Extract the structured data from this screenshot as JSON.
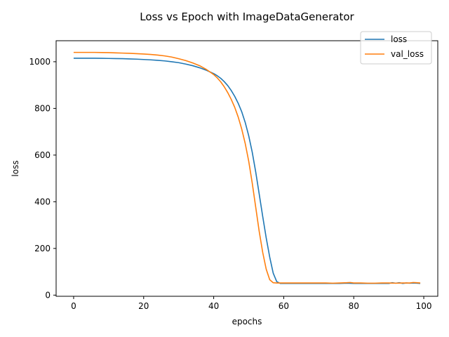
{
  "chart_data": {
    "type": "line",
    "title": "Loss vs Epoch with ImageDataGenerator",
    "xlabel": "epochs",
    "ylabel": "loss",
    "xlim": [
      -5,
      104
    ],
    "ylim": [
      -5,
      1090
    ],
    "xticks": [
      0,
      20,
      40,
      60,
      80,
      100
    ],
    "yticks": [
      0,
      200,
      400,
      600,
      800,
      1000
    ],
    "grid": false,
    "legend_position": "upper right",
    "series": [
      {
        "name": "loss",
        "color": "#1f77b4",
        "x": [
          0,
          2,
          4,
          6,
          8,
          10,
          12,
          14,
          16,
          18,
          20,
          22,
          24,
          26,
          28,
          30,
          32,
          34,
          36,
          38,
          40,
          41,
          42,
          43,
          44,
          45,
          46,
          47,
          48,
          49,
          50,
          51,
          52,
          53,
          54,
          55,
          56,
          57,
          58,
          59,
          60,
          62,
          64,
          66,
          68,
          70,
          72,
          74,
          76,
          78,
          80,
          82,
          84,
          86,
          88,
          90,
          91,
          92,
          93,
          94,
          95,
          96,
          97,
          98,
          99
        ],
        "y": [
          1015,
          1015,
          1015,
          1015,
          1014.5,
          1014,
          1013.5,
          1013,
          1012,
          1011,
          1009.5,
          1008,
          1006,
          1003.5,
          1000,
          996,
          990,
          983,
          974,
          963,
          949,
          940,
          929,
          915,
          898,
          877,
          852,
          822,
          786,
          740,
          683,
          613,
          528,
          433,
          337,
          245,
          163,
          94,
          58,
          50,
          50,
          50,
          50,
          50,
          50,
          50,
          50,
          50,
          50,
          51,
          50,
          50,
          50,
          50,
          50,
          50,
          53,
          51,
          53,
          50,
          52,
          51,
          52,
          51,
          50
        ]
      },
      {
        "name": "val_loss",
        "color": "#ff7f0e",
        "x": [
          0,
          2,
          4,
          6,
          8,
          10,
          12,
          14,
          16,
          18,
          20,
          22,
          24,
          26,
          28,
          30,
          32,
          34,
          36,
          38,
          40,
          41,
          42,
          43,
          44,
          45,
          46,
          47,
          48,
          49,
          50,
          51,
          52,
          53,
          54,
          55,
          56,
          57,
          58,
          59,
          60,
          62,
          64,
          66,
          68,
          70,
          72,
          74,
          76,
          78,
          79,
          80,
          82,
          84,
          86,
          88,
          90,
          92,
          94,
          96,
          97,
          98,
          99
        ],
        "y": [
          1040,
          1040,
          1040,
          1040,
          1039.5,
          1039,
          1038,
          1037,
          1036,
          1034.5,
          1033,
          1031,
          1028.5,
          1025,
          1020,
          1013,
          1005,
          995,
          983,
          966,
          945,
          931,
          914,
          893,
          868,
          839,
          805,
          763,
          712,
          650,
          574,
          481,
          377,
          273,
          183,
          111,
          66,
          53,
          52,
          52,
          52,
          52,
          52,
          52,
          52,
          52,
          52,
          51,
          52,
          53,
          54,
          52,
          52,
          51,
          51,
          52,
          52,
          51,
          52,
          52,
          54,
          53,
          52
        ]
      }
    ]
  }
}
